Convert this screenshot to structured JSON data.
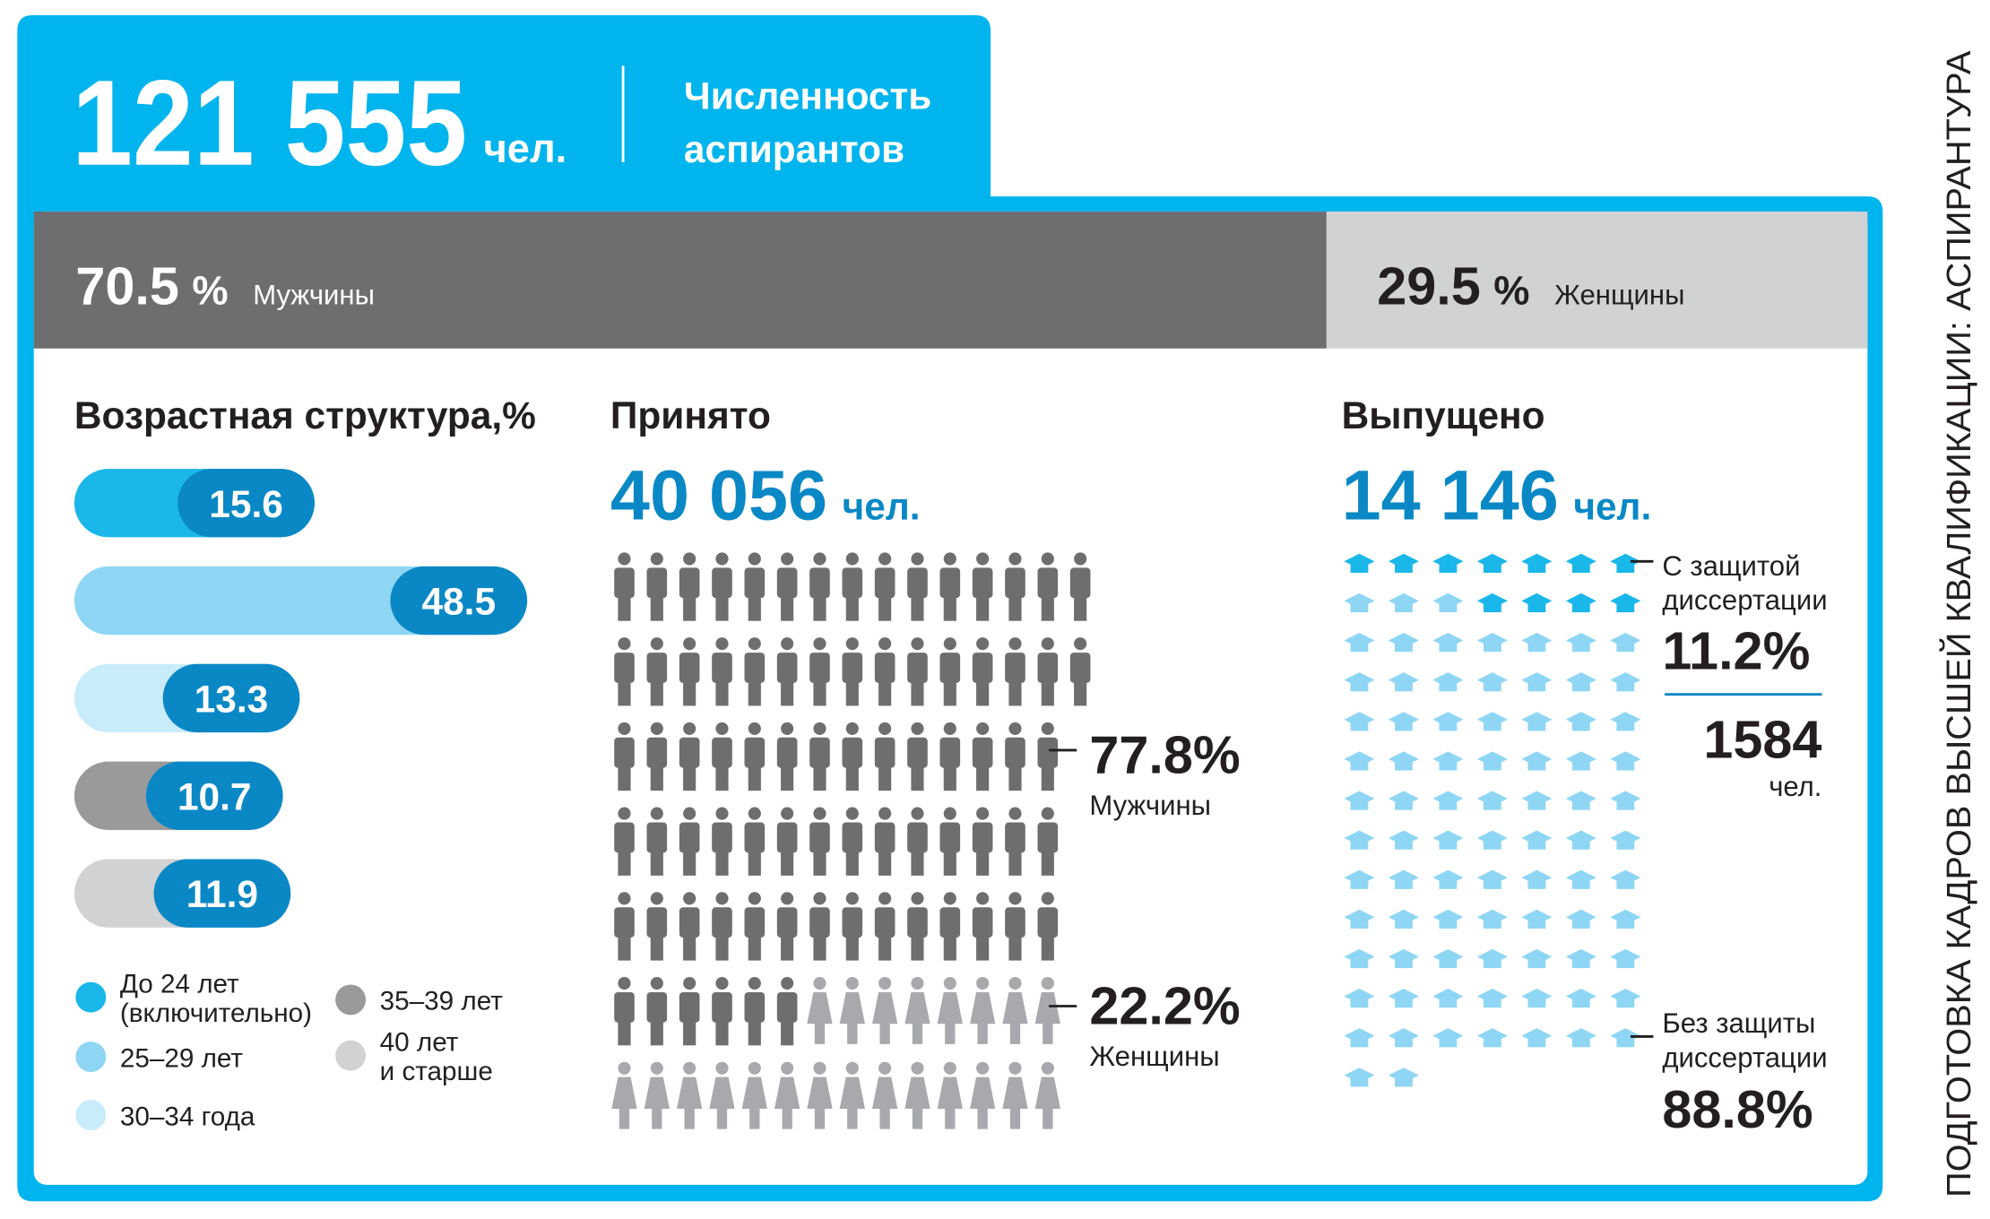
{
  "header": {
    "total": "121 555",
    "unit": "чел.",
    "title": [
      "Численность",
      "аспирантов"
    ]
  },
  "gender": {
    "percent_sign": "%",
    "men": {
      "value": 70.5,
      "label": "Мужчины"
    },
    "women": {
      "value": 29.5,
      "label": "Женщины"
    }
  },
  "age": {
    "title": "Возрастная структура,%",
    "values": [
      15.6,
      48.5,
      13.3,
      10.7,
      11.9
    ],
    "legend": [
      {
        "lines": [
          "До 24 лет",
          "(включительно)"
        ]
      },
      {
        "lines": [
          "25–29 лет"
        ]
      },
      {
        "lines": [
          "30–34 года"
        ]
      },
      {
        "lines": [
          "35–39 лет"
        ]
      },
      {
        "lines": [
          "40 лет",
          "и старше"
        ]
      }
    ]
  },
  "admitted": {
    "title": "Принято",
    "total": "40 056",
    "unit": "чел.",
    "men": {
      "percent": "77.8%",
      "label": "Мужчины"
    },
    "women": {
      "percent": "22.2%",
      "label": "Женщины"
    }
  },
  "graduated": {
    "title": "Выпущено",
    "total": "14 146",
    "unit": "чел.",
    "with_defense": {
      "lines": [
        "С защитой",
        "диссертации"
      ],
      "percent": "11.2%",
      "count": "1584",
      "unit": "чел."
    },
    "without_defense": {
      "lines": [
        "Без защиты",
        "диссертации"
      ],
      "percent": "88.8%"
    }
  },
  "side_title": "ПОДГОТОВКА КАДРОВ ВЫСШЕЙ КВАЛИФИКАЦИИ: АСПИРАНТУРА"
}
